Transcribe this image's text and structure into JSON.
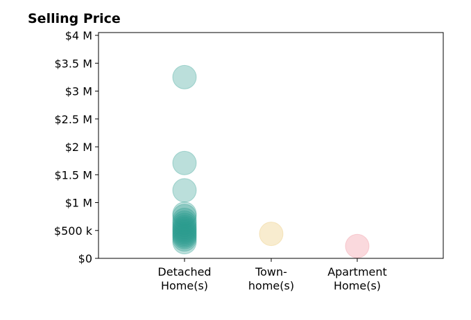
{
  "chart_data": {
    "type": "scatter",
    "title": "Selling Price",
    "xlabel": "",
    "ylabel": "",
    "categories": [
      [
        "Detached",
        "Home(s)"
      ],
      [
        "Town-",
        "home(s)"
      ],
      [
        "Apartment",
        "Home(s)"
      ]
    ],
    "ylim": [
      0,
      4050000
    ],
    "yticks": [
      0,
      500000,
      1000000,
      1500000,
      2000000,
      2500000,
      3000000,
      3500000,
      4000000
    ],
    "ytick_labels": [
      "$0",
      "$500 k",
      "$1 M",
      "$1.5 M",
      "$2 M",
      "$2.5 M",
      "$3 M",
      "$3.5 M",
      "$4 M"
    ],
    "grid": false,
    "series": [
      {
        "category": 0,
        "color": "#2a9d8f",
        "values": [
          3250000,
          1710000,
          1220000,
          800000,
          760000,
          690000,
          640000,
          600000,
          560000,
          530000,
          500000,
          470000,
          440000,
          410000,
          380000,
          340000,
          290000
        ]
      },
      {
        "category": 1,
        "color": "#e9c46a",
        "values": [
          440000
        ]
      },
      {
        "category": 2,
        "color": "#ef8a96",
        "values": [
          220000
        ]
      }
    ]
  }
}
